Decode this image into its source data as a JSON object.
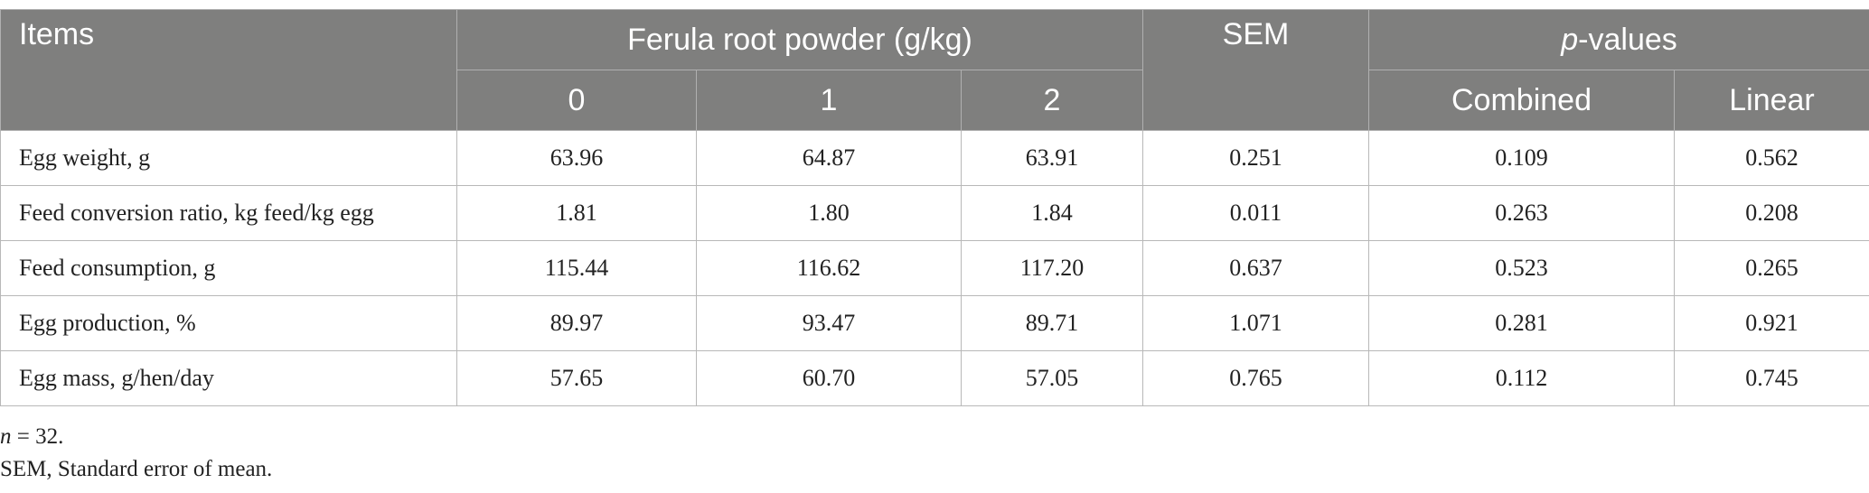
{
  "table": {
    "header": {
      "items": "Items",
      "group": "Ferula root powder (g/kg)",
      "levels": [
        "0",
        "1",
        "2"
      ],
      "sem": "SEM",
      "pvalues": {
        "italic": "p",
        "text": "-values"
      },
      "pcols": [
        "Combined",
        "Linear"
      ]
    },
    "rows": [
      [
        "Egg weight, g",
        "63.96",
        "64.87",
        "63.91",
        "0.251",
        "0.109",
        "0.562"
      ],
      [
        "Feed conversion ratio, kg feed/kg egg",
        "1.81",
        "1.80",
        "1.84",
        "0.011",
        "0.263",
        "0.208"
      ],
      [
        "Feed consumption, g",
        "115.44",
        "116.62",
        "117.20",
        "0.637",
        "0.523",
        "0.265"
      ],
      [
        "Egg production, %",
        "89.97",
        "93.47",
        "89.71",
        "1.071",
        "0.281",
        "0.921"
      ],
      [
        "Egg mass, g/hen/day",
        "57.65",
        "60.70",
        "57.05",
        "0.765",
        "0.112",
        "0.745"
      ]
    ]
  },
  "footnotes": [
    {
      "italic": "n",
      "text": " = 32."
    },
    "SEM, Standard error of mean."
  ]
}
